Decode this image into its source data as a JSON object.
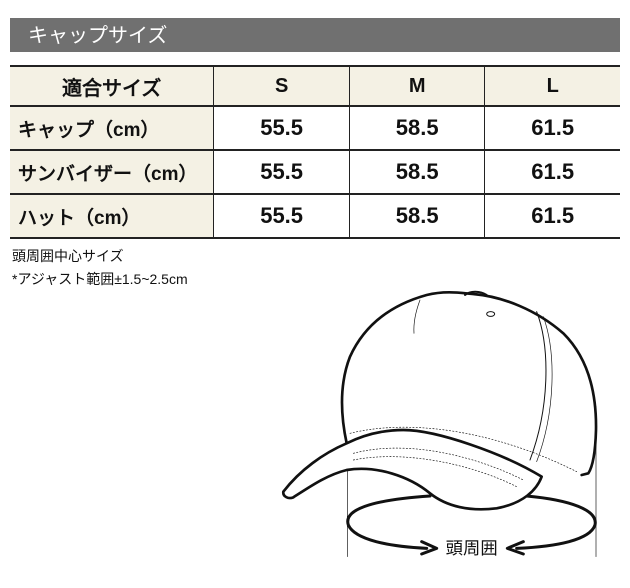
{
  "title": "キャップサイズ",
  "table": {
    "header": [
      "適合サイズ",
      "S",
      "M",
      "L"
    ],
    "rows": [
      {
        "label": "キャップ（cm）",
        "values": [
          "55.5",
          "58.5",
          "61.5"
        ]
      },
      {
        "label": "サンバイザー（cm）",
        "values": [
          "55.5",
          "58.5",
          "61.5"
        ]
      },
      {
        "label": "ハット（cm）",
        "values": [
          "55.5",
          "58.5",
          "61.5"
        ]
      }
    ]
  },
  "notes": [
    "頭周囲中心サイズ",
    "*アジャスト範囲±1.5~2.5cm"
  ],
  "illustration": {
    "label": "頭周囲"
  },
  "colors": {
    "title_bar": "#707070",
    "label_cell": "#f4f1e4"
  }
}
